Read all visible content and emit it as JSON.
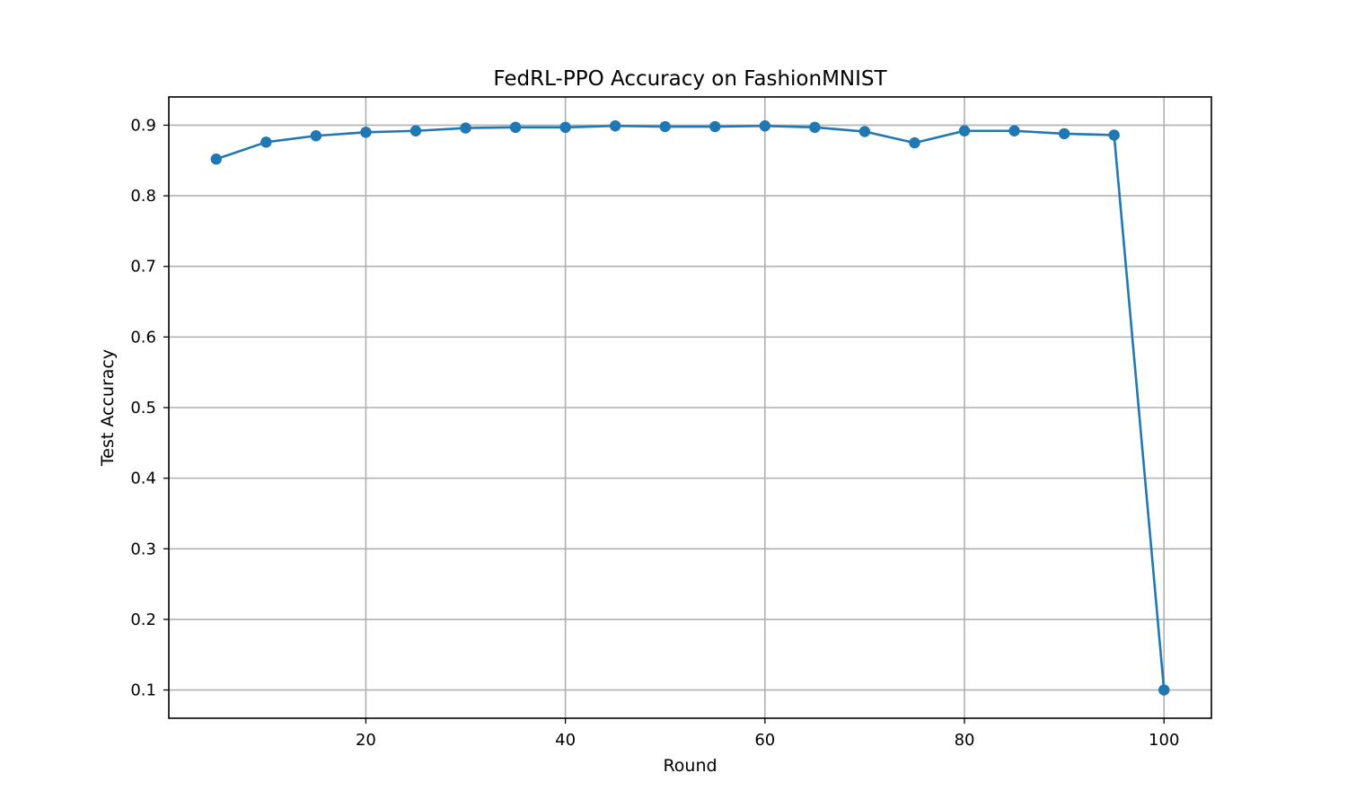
{
  "chart_data": {
    "type": "line",
    "title": "FedRL-PPO Accuracy on FashionMNIST",
    "xlabel": "Round",
    "ylabel": "Test Accuracy",
    "xlim": [
      0.25,
      104.75
    ],
    "ylim": [
      0.06,
      0.94
    ],
    "xticks": [
      20,
      40,
      60,
      80,
      100
    ],
    "yticks": [
      0.1,
      0.2,
      0.3,
      0.4,
      0.5,
      0.6,
      0.7,
      0.8,
      0.9
    ],
    "xtick_labels": [
      "20",
      "40",
      "60",
      "80",
      "100"
    ],
    "ytick_labels": [
      "0.1",
      "0.2",
      "0.3",
      "0.4",
      "0.5",
      "0.6",
      "0.7",
      "0.8",
      "0.9"
    ],
    "grid": true,
    "legend": "none",
    "series": [
      {
        "color": "#1f77b4",
        "marker": "circle",
        "x": [
          5,
          10,
          15,
          20,
          25,
          30,
          35,
          40,
          45,
          50,
          55,
          60,
          65,
          70,
          75,
          80,
          85,
          90,
          95,
          100
        ],
        "y": [
          0.852,
          0.876,
          0.885,
          0.89,
          0.892,
          0.896,
          0.897,
          0.897,
          0.899,
          0.898,
          0.898,
          0.899,
          0.897,
          0.891,
          0.875,
          0.892,
          0.892,
          0.888,
          0.886,
          0.1
        ]
      }
    ]
  }
}
